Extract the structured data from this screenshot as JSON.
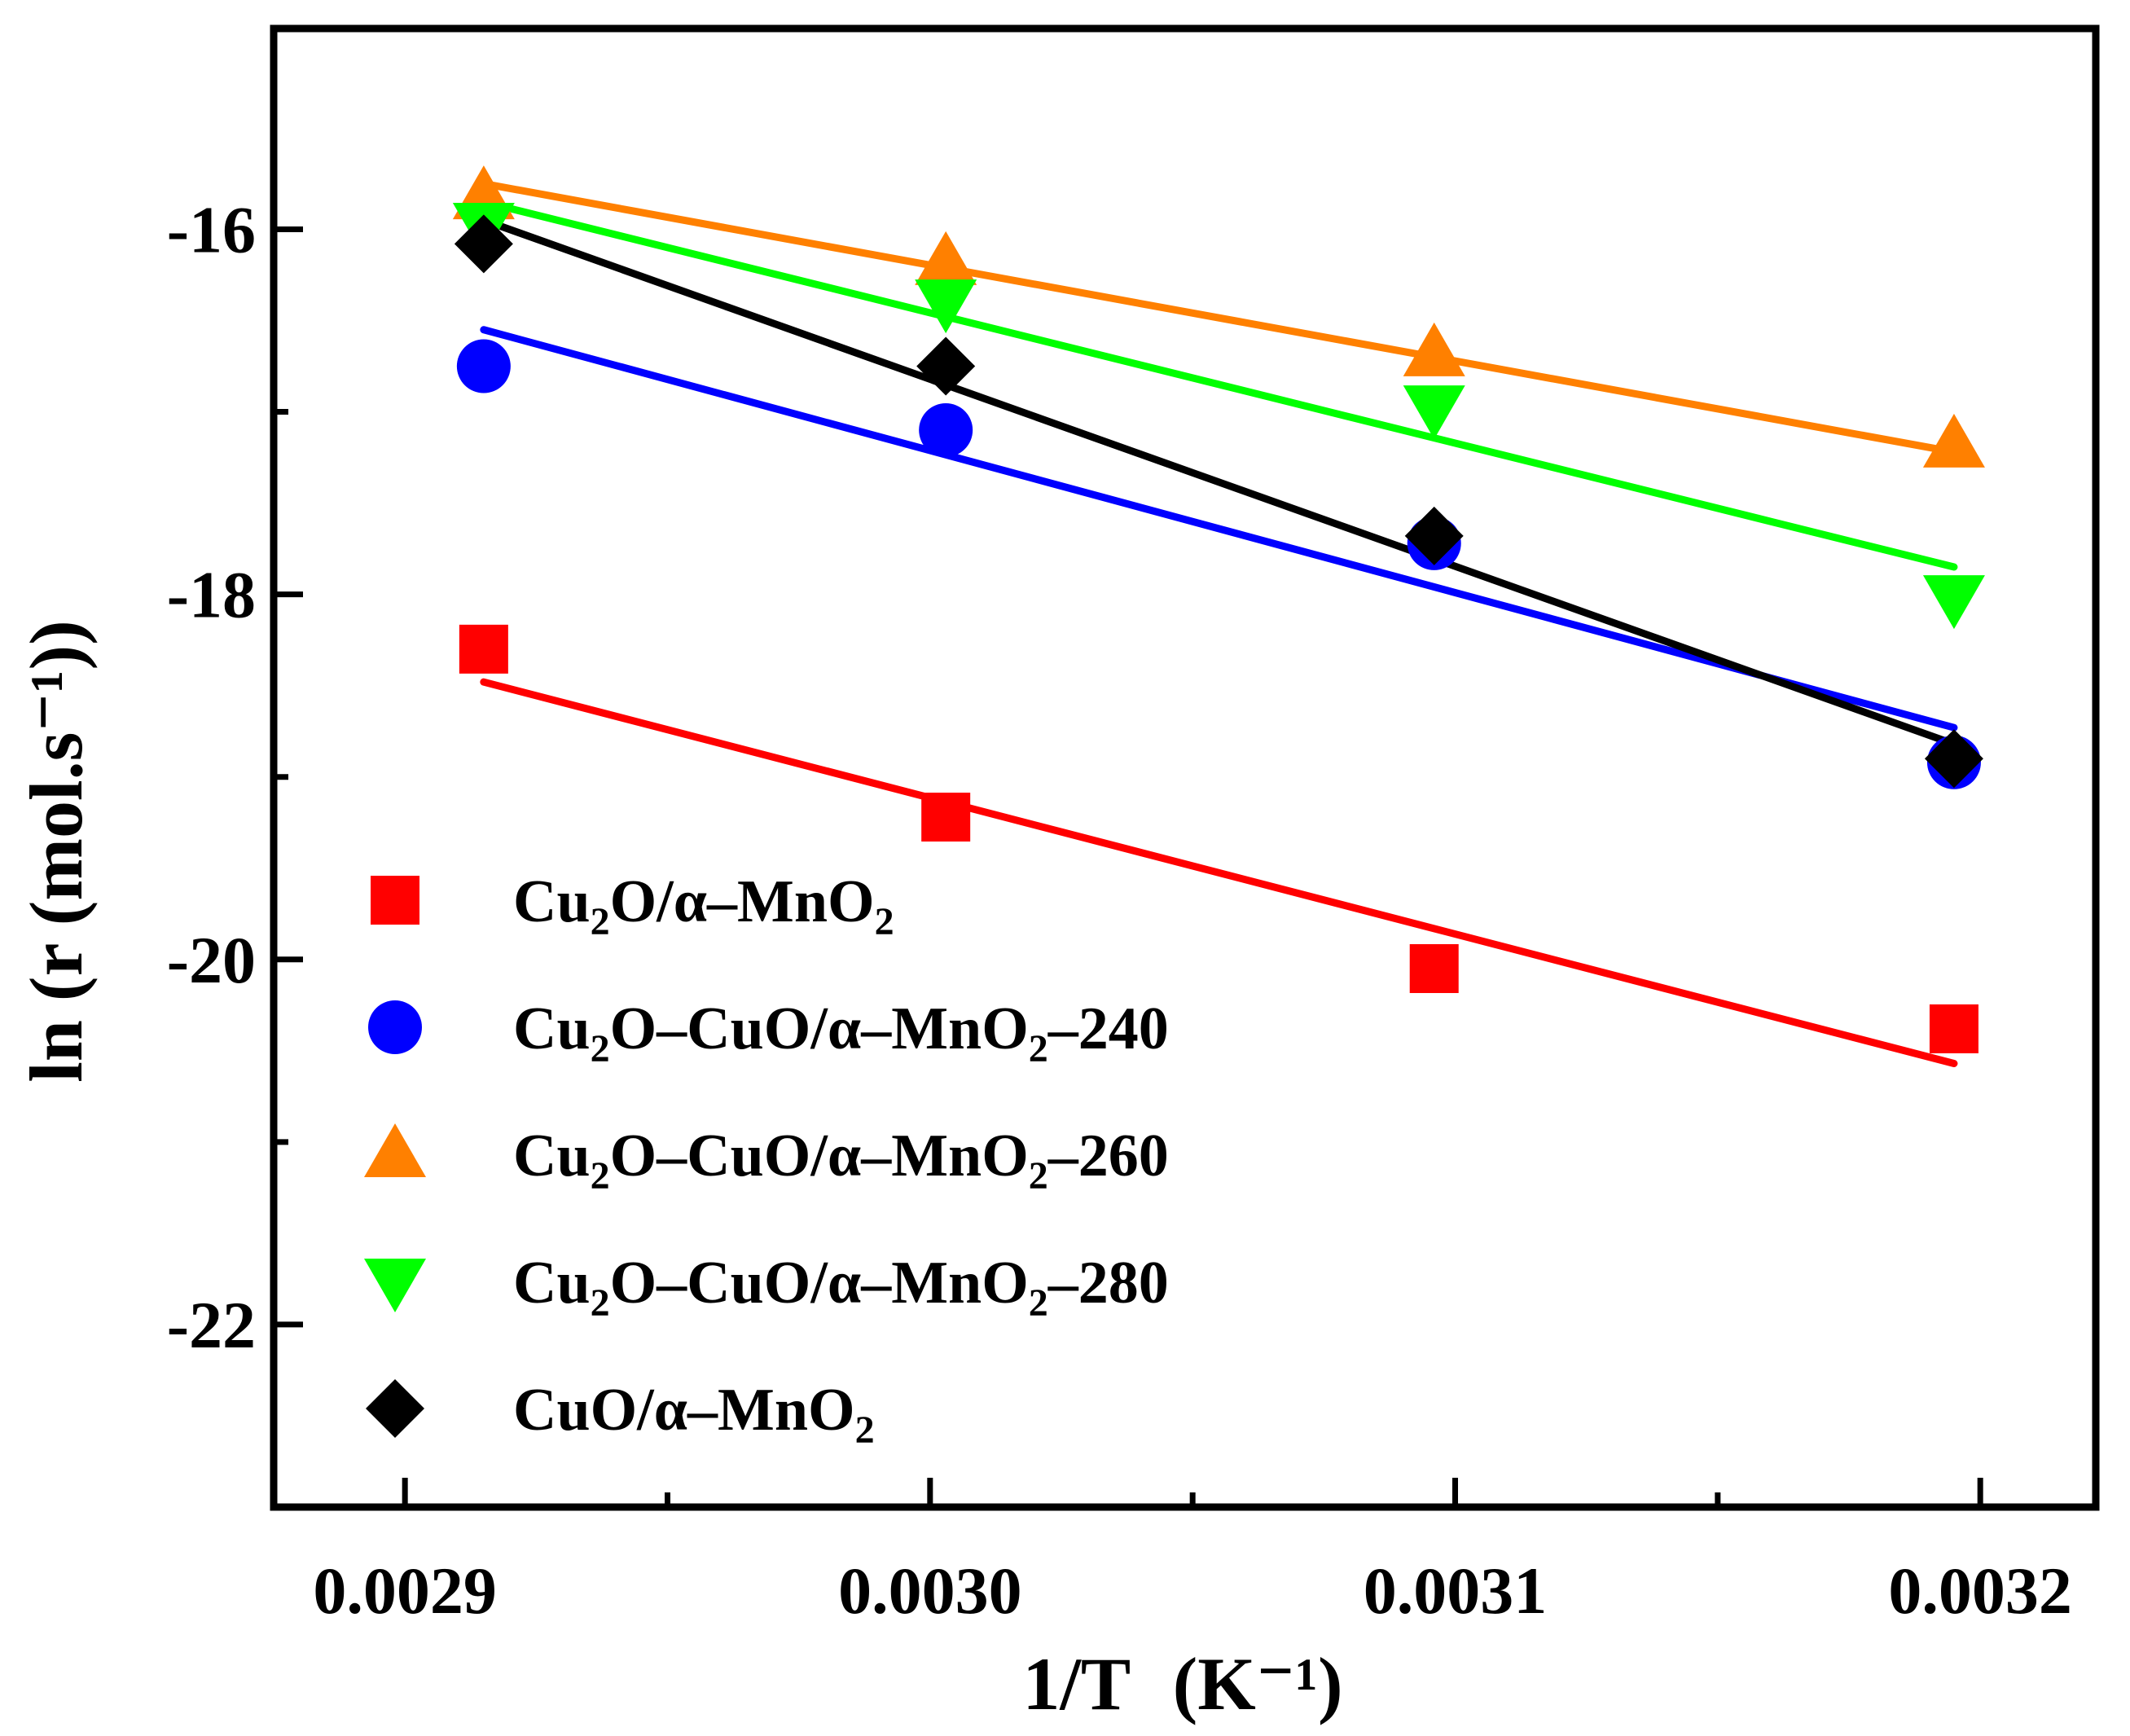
{
  "chart_data": {
    "type": "scatter",
    "title": "",
    "xlabel": "1/T",
    "xlabel_unit": "(K⁻¹)",
    "ylabel": "ln (r (mol.s⁻¹))",
    "xlim": [
      0.002875,
      0.003222
    ],
    "ylim": [
      -23.0,
      -14.9
    ],
    "x_ticks": [
      0.0029,
      0.003,
      0.0031,
      0.0032
    ],
    "x_tick_labels": [
      "0.0029",
      "0.0030",
      "0.0031",
      "0.0032"
    ],
    "x_minor_ticks": [
      0.00295,
      0.00305,
      0.00315
    ],
    "y_ticks": [
      -16,
      -18,
      -20,
      -22
    ],
    "y_tick_labels": [
      "-16",
      "-18",
      "-20",
      "-22"
    ],
    "y_minor_ticks": [
      -17,
      -19,
      -21
    ],
    "legend_position": "lower-left",
    "grid": false,
    "series": [
      {
        "name": "Cu2O/α-MnO2",
        "label_parts": [
          "Cu",
          "2",
          "O/α",
          "–",
          "MnO",
          "2",
          ""
        ],
        "color": "#ff0000",
        "marker": "square",
        "x": [
          0.002915,
          0.003003,
          0.003096,
          0.003195
        ],
        "y": [
          -18.3,
          -19.22,
          -20.05,
          -20.38
        ],
        "fit": [
          [
            0.002915,
            -18.48
          ],
          [
            0.003195,
            -20.57
          ]
        ]
      },
      {
        "name": "Cu2O-CuO/α-MnO2-240",
        "label_parts": [
          "Cu",
          "2",
          "O",
          "–",
          "CuO/α",
          "–",
          "MnO",
          "2",
          "–",
          "240"
        ],
        "color": "#0000ff",
        "marker": "circle",
        "x": [
          0.002915,
          0.003003,
          0.003096,
          0.003195
        ],
        "y": [
          -16.75,
          -17.1,
          -17.72,
          -18.92
        ],
        "fit": [
          [
            0.002915,
            -16.55
          ],
          [
            0.003195,
            -18.73
          ]
        ]
      },
      {
        "name": "Cu2O-CuO/α-MnO2-260",
        "label_parts": [
          "Cu",
          "2",
          "O",
          "–",
          "CuO/α",
          "–",
          "MnO",
          "2",
          "–",
          "260"
        ],
        "color": "#ff8000",
        "marker": "triangle-up",
        "x": [
          0.002915,
          0.003003,
          0.003096,
          0.003195
        ],
        "y": [
          -15.82,
          -16.18,
          -16.68,
          -17.18
        ],
        "fit": [
          [
            0.002915,
            -15.75
          ],
          [
            0.003195,
            -17.22
          ]
        ]
      },
      {
        "name": "Cu2O-CuO/α-MnO2-280",
        "label_parts": [
          "Cu",
          "2",
          "O",
          "–",
          "CuO/α",
          "–",
          "MnO",
          "2",
          "–",
          "280"
        ],
        "color": "#00ff00",
        "marker": "triangle-down",
        "x": [
          0.002915,
          0.003003,
          0.003096,
          0.003195
        ],
        "y": [
          -15.98,
          -16.4,
          -16.98,
          -18.02
        ],
        "fit": [
          [
            0.002915,
            -15.85
          ],
          [
            0.003195,
            -17.85
          ]
        ]
      },
      {
        "name": "CuO/α-MnO2",
        "label_parts": [
          "CuO/α",
          "–",
          "MnO",
          "2",
          ""
        ],
        "color": "#000000",
        "marker": "diamond",
        "x": [
          0.002915,
          0.003003,
          0.003096,
          0.003195
        ],
        "y": [
          -16.08,
          -16.75,
          -17.68,
          -18.9
        ],
        "fit": [
          [
            0.002915,
            -15.95
          ],
          [
            0.003195,
            -18.82
          ]
        ]
      }
    ]
  }
}
